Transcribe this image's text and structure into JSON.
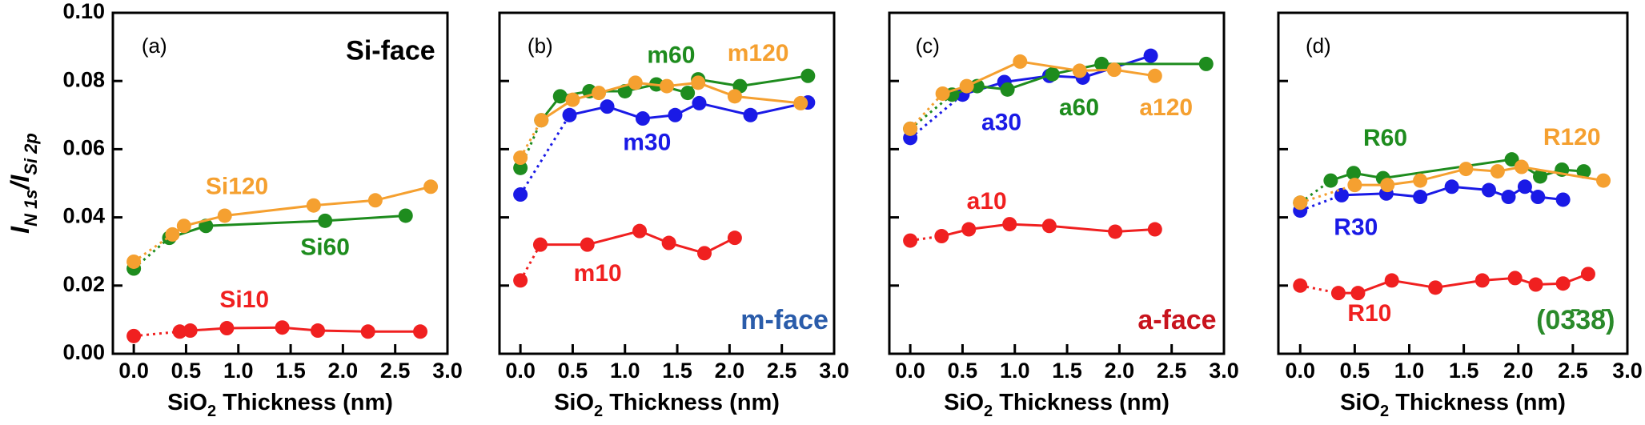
{
  "chart_data": [
    {
      "type": "line",
      "panel_label": "(a)",
      "face_label": {
        "text": "Si-face",
        "color": "#000000"
      },
      "y_label": [
        {
          "text": "I"
        },
        {
          "text": "N 1s",
          "sub": true
        },
        {
          "text": "/I"
        },
        {
          "text": "Si 2p",
          "sub": true
        }
      ],
      "x_label": [
        {
          "text": "SiO"
        },
        {
          "text": "2",
          "sub": true
        },
        {
          "text": " Thickness (nm)"
        }
      ],
      "xlim": [
        -0.2,
        3.0
      ],
      "ylim": [
        0,
        0.1
      ],
      "ytick_labels": true,
      "xticks": [
        {
          "value": 0,
          "label": "0.0"
        },
        0.5,
        {
          "value": 1,
          "label": "1.0"
        },
        1.5,
        {
          "value": 2,
          "label": "2.0"
        },
        2.5,
        {
          "value": 3,
          "label": "3.0"
        }
      ],
      "yticks": [
        {
          "value": 0,
          "label": "0.00"
        },
        {
          "value": 0.02,
          "label": "0.02"
        },
        {
          "value": 0.04,
          "label": "0.04"
        },
        {
          "value": 0.06,
          "label": "0.06"
        },
        {
          "value": 0.08,
          "label": "0.08"
        },
        {
          "value": 0.1,
          "label": "0.10"
        }
      ],
      "series": [
        {
          "name": "Si10",
          "color": "#f02020",
          "x": [
            0,
            0.44,
            0.54,
            0.89,
            1.42,
            1.76,
            2.24,
            2.74
          ],
          "values": [
            0.0052,
            0.0065,
            0.0068,
            0.0075,
            0.0077,
            0.0068,
            0.0065,
            0.0065
          ]
        },
        {
          "name": "Si60",
          "color": "#1e8c1e",
          "x": [
            0,
            0.34,
            0.69,
            1.83,
            2.6
          ],
          "values": [
            0.025,
            0.034,
            0.0375,
            0.039,
            0.0405
          ]
        },
        {
          "name": "Si120",
          "color": "#f5a030",
          "x": [
            0,
            0.37,
            0.48,
            0.87,
            1.72,
            2.31,
            2.84
          ],
          "values": [
            0.027,
            0.035,
            0.0375,
            0.0405,
            0.0435,
            0.045,
            0.049
          ]
        }
      ]
    },
    {
      "type": "line",
      "panel_label": "(b)",
      "face_label": {
        "text": "m-face",
        "color": "#2a5caa"
      },
      "x_label": [
        {
          "text": "SiO"
        },
        {
          "text": "2",
          "sub": true
        },
        {
          "text": " Thickness (nm)"
        }
      ],
      "xlim": [
        -0.2,
        3.0
      ],
      "ylim": [
        0,
        0.1
      ],
      "ytick_labels": false,
      "xticks": [
        {
          "value": 0,
          "label": "0.0"
        },
        0.5,
        {
          "value": 1,
          "label": "1.0"
        },
        1.5,
        {
          "value": 2,
          "label": "2.0"
        },
        2.5,
        {
          "value": 3,
          "label": "3.0"
        }
      ],
      "yticks": [
        0,
        0.02,
        0.04,
        0.06,
        0.08,
        0.1
      ],
      "series": [
        {
          "name": "m10",
          "color": "#f02020",
          "x": [
            0,
            0.19,
            0.64,
            1.14,
            1.42,
            1.76,
            2.05
          ],
          "values": [
            0.0215,
            0.032,
            0.032,
            0.036,
            0.0325,
            0.0295,
            0.034
          ]
        },
        {
          "name": "m30",
          "color": "#1a1ae6",
          "x": [
            0,
            0.47,
            0.83,
            1.17,
            1.48,
            1.71,
            2.2,
            2.75
          ],
          "values": [
            0.0467,
            0.07,
            0.0725,
            0.069,
            0.07,
            0.0735,
            0.07,
            0.0737
          ]
        },
        {
          "name": "m60",
          "color": "#1e8c1e",
          "x": [
            0,
            0.2,
            0.38,
            0.66,
            1.0,
            1.3,
            1.6,
            1.7,
            2.1,
            2.75
          ],
          "values": [
            0.0545,
            0.0685,
            0.0755,
            0.077,
            0.077,
            0.079,
            0.0765,
            0.0805,
            0.0785,
            0.0815
          ]
        },
        {
          "name": "m120",
          "color": "#f5a030",
          "x": [
            0,
            0.2,
            0.5,
            0.75,
            1.1,
            1.4,
            1.7,
            2.05,
            2.68
          ],
          "values": [
            0.0575,
            0.0685,
            0.0745,
            0.0765,
            0.0795,
            0.0785,
            0.0795,
            0.0755,
            0.0735
          ]
        }
      ]
    },
    {
      "type": "line",
      "panel_label": "(c)",
      "face_label": {
        "text": "a-face",
        "color": "#c8141e"
      },
      "x_label": [
        {
          "text": "SiO"
        },
        {
          "text": "2",
          "sub": true
        },
        {
          "text": " Thickness (nm)"
        }
      ],
      "xlim": [
        -0.2,
        3.0
      ],
      "ylim": [
        0,
        0.1
      ],
      "ytick_labels": false,
      "xticks": [
        {
          "value": 0,
          "label": "0.0"
        },
        0.5,
        {
          "value": 1,
          "label": "1.0"
        },
        1.5,
        {
          "value": 2,
          "label": "2.0"
        },
        2.5,
        {
          "value": 3,
          "label": "3.0"
        }
      ],
      "yticks": [
        0,
        0.02,
        0.04,
        0.06,
        0.08,
        0.1
      ],
      "series": [
        {
          "name": "a10",
          "color": "#f02020",
          "x": [
            0,
            0.3,
            0.56,
            0.95,
            1.33,
            1.96,
            2.34
          ],
          "values": [
            0.0332,
            0.0345,
            0.0365,
            0.038,
            0.0375,
            0.0358,
            0.0365
          ]
        },
        {
          "name": "a30",
          "color": "#1a1ae6",
          "x": [
            0,
            0.5,
            0.9,
            1.33,
            1.65,
            2.3
          ],
          "values": [
            0.0633,
            0.076,
            0.0797,
            0.0815,
            0.081,
            0.0874
          ]
        },
        {
          "name": "a60",
          "color": "#1e8c1e",
          "x": [
            0,
            0.4,
            0.64,
            0.93,
            1.36,
            1.83,
            2.83
          ],
          "values": [
            0.066,
            0.076,
            0.0785,
            0.0775,
            0.082,
            0.085,
            0.085
          ]
        },
        {
          "name": "a120",
          "color": "#f5a030",
          "x": [
            0,
            0.31,
            0.54,
            1.05,
            1.62,
            1.95,
            2.34
          ],
          "values": [
            0.066,
            0.0763,
            0.0785,
            0.0857,
            0.083,
            0.0833,
            0.0815
          ]
        }
      ]
    },
    {
      "type": "line",
      "panel_label": "(d)",
      "face_label": {
        "text": "(03̄38̄)",
        "color": "#2a8a2a"
      },
      "x_label": [
        {
          "text": "SiO"
        },
        {
          "text": "2",
          "sub": true
        },
        {
          "text": " Thickness (nm)"
        }
      ],
      "xlim": [
        -0.2,
        3.0
      ],
      "ylim": [
        0,
        0.1
      ],
      "ytick_labels": false,
      "xticks": [
        {
          "value": 0,
          "label": "0.0"
        },
        0.5,
        {
          "value": 1,
          "label": "1.0"
        },
        1.5,
        {
          "value": 2,
          "label": "2.0"
        },
        2.5,
        {
          "value": 3,
          "label": "3.0"
        }
      ],
      "yticks": [
        0,
        0.02,
        0.04,
        0.06,
        0.08,
        0.1
      ],
      "series": [
        {
          "name": "R10",
          "color": "#f02020",
          "x": [
            0,
            0.35,
            0.53,
            0.84,
            1.24,
            1.67,
            1.97,
            2.16,
            2.41,
            2.64
          ],
          "values": [
            0.02,
            0.0178,
            0.0178,
            0.0215,
            0.0194,
            0.0215,
            0.0222,
            0.0203,
            0.0206,
            0.0234
          ]
        },
        {
          "name": "R30",
          "color": "#1a1ae6",
          "x": [
            0,
            0.38,
            0.79,
            1.1,
            1.39,
            1.73,
            1.91,
            2.06,
            2.18,
            2.41
          ],
          "values": [
            0.042,
            0.0465,
            0.047,
            0.046,
            0.049,
            0.048,
            0.046,
            0.049,
            0.046,
            0.0452
          ]
        },
        {
          "name": "R60",
          "color": "#1e8c1e",
          "x": [
            0,
            0.28,
            0.49,
            0.76,
            1.94,
            2.2,
            2.4,
            2.6
          ],
          "values": [
            0.0443,
            0.0508,
            0.053,
            0.0515,
            0.057,
            0.052,
            0.054,
            0.0535
          ]
        },
        {
          "name": "R120",
          "color": "#f5a030",
          "x": [
            0,
            0.5,
            0.8,
            1.1,
            1.52,
            1.81,
            2.03,
            2.78
          ],
          "values": [
            0.0443,
            0.0495,
            0.0495,
            0.0508,
            0.0542,
            0.0535,
            0.0548,
            0.0508
          ]
        }
      ]
    }
  ]
}
